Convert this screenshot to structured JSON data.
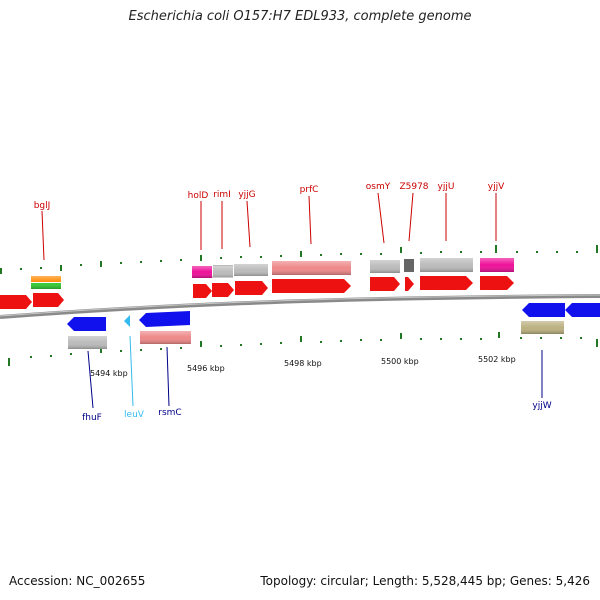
{
  "title": "Escherichia coli O157:H7 EDL933, complete genome",
  "footer": {
    "accession": "Accession: NC_002655",
    "summary": "Topology: circular; Length: 5,528,445 bp; Genes: 5,426"
  },
  "colors": {
    "cds_forward": "#ee1111",
    "cds_reverse": "#1111ee",
    "cds_pseudo": "#bbbbbb",
    "feature_magenta": "#ee1199",
    "feature_salmon": "#ee8888",
    "feature_orange": "#ff8800",
    "feature_green": "#33cc33",
    "feature_olive": "#bbb080",
    "feature_darkgray": "#666666",
    "trna": "#33bbee",
    "tick": "#227722",
    "backbone": "#888888"
  },
  "scale": {
    "ticks": [
      "5494 kbp",
      "5496 kbp",
      "5498 kbp",
      "5500 kbp",
      "5502 kbp"
    ]
  },
  "gene_labels": {
    "bglJ": "bglJ",
    "holD": "holD",
    "rimI": "rimI",
    "yjjG": "yjjG",
    "prfC": "prfC",
    "osmY": "osmY",
    "Z5978": "Z5978",
    "yjjU": "yjjU",
    "yjjV": "yjjV",
    "fhuF": "fhuF",
    "leuV": "leuV",
    "rsmC": "rsmC",
    "yjjW": "yjjW"
  }
}
